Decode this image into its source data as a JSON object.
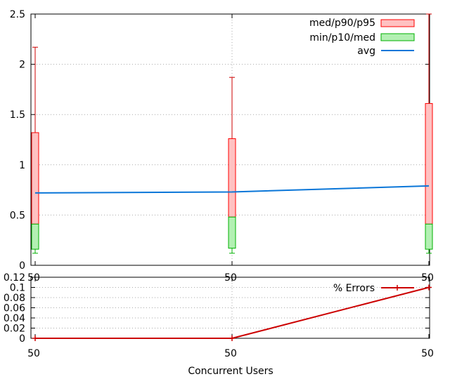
{
  "chart_data": [
    {
      "type": "box",
      "categories": [
        "50",
        "50",
        "50"
      ],
      "ylim": [
        0,
        2.5
      ],
      "yticks": [
        "0",
        "0.5",
        "1",
        "1.5",
        "2",
        "2.5"
      ],
      "grid": true,
      "legend_position": "top-right",
      "legend": {
        "upper": "med/p90/p95",
        "lower": "min/p10/med",
        "avg": "avg"
      },
      "series": [
        {
          "min": 0.12,
          "p10": 0.16,
          "med": 0.41,
          "p90": 1.32,
          "p95": 2.17
        },
        {
          "min": 0.12,
          "p10": 0.17,
          "med": 0.48,
          "p90": 1.26,
          "p95": 1.87
        },
        {
          "min": 0.12,
          "p10": 0.16,
          "med": 0.41,
          "p90": 1.61,
          "p95": 2.5
        }
      ],
      "avg": [
        0.72,
        0.73,
        0.79
      ],
      "colors": {
        "upper_fill": "#ffc1c1",
        "upper_stroke": "#ff0000",
        "lower_fill": "#b3f0b3",
        "lower_stroke": "#00b000",
        "avg": "#0a76d8",
        "whisker": "#cc0000"
      }
    },
    {
      "type": "line",
      "categories": [
        "50",
        "50",
        "50"
      ],
      "ylim": [
        0,
        0.12
      ],
      "yticks": [
        "0",
        "0.02",
        "0.04",
        "0.06",
        "0.08",
        "0.1",
        "0.12"
      ],
      "series": [
        {
          "name": "% Errors",
          "values": [
            0,
            0,
            0.1
          ]
        }
      ],
      "xlabel": "Concurrent Users",
      "colors": {
        "line": "#cc0000"
      }
    }
  ]
}
